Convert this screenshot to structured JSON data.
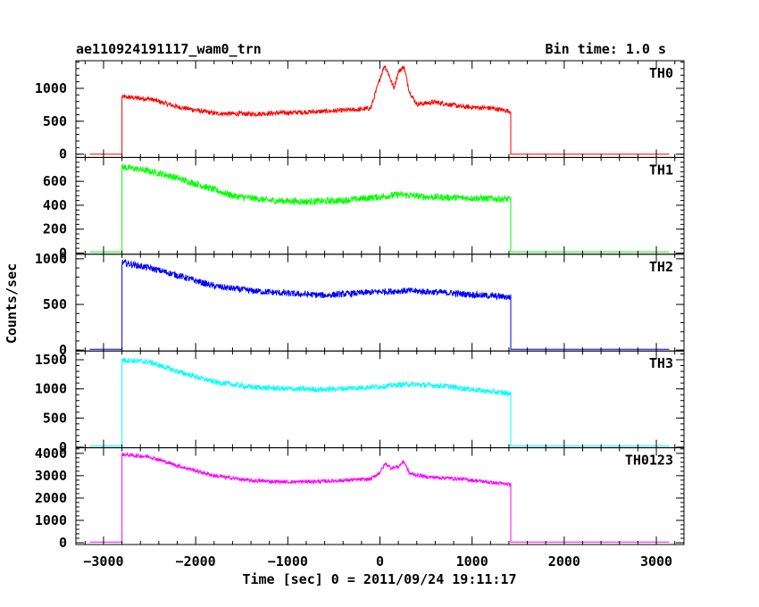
{
  "chart_data": {
    "type": "line",
    "title": "ae110924191117_wam0_trn",
    "bin_time_label": "Bin time: 1.0 s",
    "xlabel": "Time [sec] 0 = 2011/09/24 19:11:17",
    "ylabel": "Counts/sec",
    "xlim": [
      -3300,
      3300
    ],
    "x_ticks": [
      -3000,
      -2000,
      -1000,
      0,
      1000,
      2000,
      3000
    ],
    "x_tick_labels": [
      "−3000",
      "−2000",
      "−1000",
      "0",
      "1000",
      "2000",
      "3000"
    ],
    "data_range": [
      -3150,
      3150
    ],
    "shared_features": {
      "on_time": -2800,
      "off_time": 1420
    },
    "panels": [
      {
        "name": "TH0",
        "color": "#ff0000",
        "ylim": [
          -50,
          1420
        ],
        "y_ticks": [
          0,
          500,
          1000
        ],
        "baseline": 0,
        "profile": [
          [
            -2800,
            870
          ],
          [
            -2500,
            840
          ],
          [
            -2200,
            720
          ],
          [
            -1800,
            620
          ],
          [
            -1400,
            610
          ],
          [
            -1000,
            630
          ],
          [
            -600,
            650
          ],
          [
            -200,
            680
          ],
          [
            -100,
            700
          ],
          [
            0,
            1150
          ],
          [
            50,
            1350
          ],
          [
            100,
            1200
          ],
          [
            150,
            1000
          ],
          [
            200,
            1250
          ],
          [
            260,
            1330
          ],
          [
            320,
            950
          ],
          [
            400,
            760
          ],
          [
            600,
            790
          ],
          [
            900,
            720
          ],
          [
            1200,
            700
          ],
          [
            1420,
            650
          ]
        ],
        "noise": 35
      },
      {
        "name": "TH1",
        "color": "#00ff00",
        "ylim": [
          -10,
          800
        ],
        "y_ticks": [
          0,
          200,
          400,
          600
        ],
        "baseline": 10,
        "profile": [
          [
            -2800,
            720
          ],
          [
            -2600,
            700
          ],
          [
            -2300,
            650
          ],
          [
            -2000,
            580
          ],
          [
            -1600,
            480
          ],
          [
            -1200,
            440
          ],
          [
            -800,
            430
          ],
          [
            -400,
            440
          ],
          [
            0,
            470
          ],
          [
            200,
            490
          ],
          [
            500,
            470
          ],
          [
            1000,
            460
          ],
          [
            1420,
            450
          ]
        ],
        "noise": 28
      },
      {
        "name": "TH2",
        "color": "#0000ff",
        "ylim": [
          -10,
          1050
        ],
        "y_ticks": [
          0,
          500,
          1000
        ],
        "baseline": 10,
        "profile": [
          [
            -2800,
            960
          ],
          [
            -2500,
            900
          ],
          [
            -2200,
            820
          ],
          [
            -1800,
            700
          ],
          [
            -1400,
            650
          ],
          [
            -1000,
            620
          ],
          [
            -600,
            600
          ],
          [
            0,
            640
          ],
          [
            300,
            650
          ],
          [
            700,
            630
          ],
          [
            1100,
            600
          ],
          [
            1420,
            580
          ]
        ],
        "noise": 35
      },
      {
        "name": "TH3",
        "color": "#00ffff",
        "ylim": [
          -10,
          1650
        ],
        "y_ticks": [
          0,
          500,
          1000,
          1500
        ],
        "baseline": 20,
        "profile": [
          [
            -2800,
            1500
          ],
          [
            -2500,
            1460
          ],
          [
            -2200,
            1300
          ],
          [
            -1800,
            1120
          ],
          [
            -1400,
            1030
          ],
          [
            -1000,
            1000
          ],
          [
            -600,
            990
          ],
          [
            0,
            1040
          ],
          [
            300,
            1080
          ],
          [
            700,
            1050
          ],
          [
            1100,
            970
          ],
          [
            1420,
            920
          ]
        ],
        "noise": 45
      },
      {
        "name": "TH0123",
        "color": "#ff00ff",
        "ylim": [
          -80,
          4250
        ],
        "y_ticks": [
          0,
          1000,
          2000,
          3000,
          4000
        ],
        "baseline": 30,
        "profile": [
          [
            -2800,
            3950
          ],
          [
            -2500,
            3850
          ],
          [
            -2200,
            3450
          ],
          [
            -1800,
            3000
          ],
          [
            -1400,
            2780
          ],
          [
            -1000,
            2720
          ],
          [
            -600,
            2750
          ],
          [
            -100,
            2850
          ],
          [
            0,
            3150
          ],
          [
            60,
            3550
          ],
          [
            120,
            3350
          ],
          [
            200,
            3400
          ],
          [
            260,
            3650
          ],
          [
            320,
            3100
          ],
          [
            500,
            2950
          ],
          [
            900,
            2850
          ],
          [
            1200,
            2700
          ],
          [
            1420,
            2600
          ]
        ],
        "noise": 80
      }
    ]
  }
}
